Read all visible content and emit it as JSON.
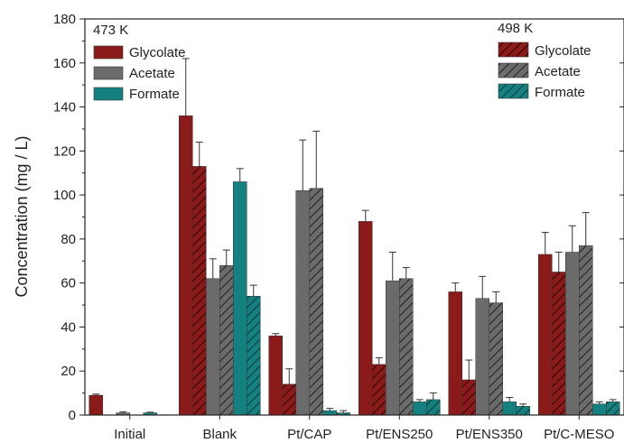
{
  "chart_data": {
    "type": "bar",
    "ylabel": "Concentration (mg / L)",
    "ylim": [
      0,
      180
    ],
    "yticks": [
      0,
      20,
      40,
      60,
      80,
      100,
      120,
      140,
      160,
      180
    ],
    "categories": [
      "Initial",
      "Blank",
      "Pt/CAP",
      "Pt/ENS250",
      "Pt/ENS350",
      "Pt/C-MESO"
    ],
    "legend_473": {
      "label": "473 K",
      "position": "top-left",
      "entries": [
        "Glycolate",
        "Acetate",
        "Formate"
      ]
    },
    "legend_498": {
      "label": "498 K",
      "position": "top-right",
      "entries": [
        "Glycolate",
        "Acetate",
        "Formate"
      ]
    },
    "colors": {
      "Glycolate": "#8b1a1a",
      "Acetate": "#6b6b6b",
      "Formate": "#158080"
    },
    "series": [
      {
        "name": "Glycolate",
        "temperature": "473 K",
        "hatched": false,
        "values": [
          9,
          136,
          36,
          88,
          56,
          73
        ],
        "errors": [
          0.5,
          26,
          1,
          5,
          4,
          10
        ]
      },
      {
        "name": "Glycolate",
        "temperature": "498 K",
        "hatched": true,
        "values": [
          null,
          113,
          14,
          23,
          16,
          65
        ],
        "errors": [
          null,
          11,
          7,
          3,
          9,
          9
        ]
      },
      {
        "name": "Acetate",
        "temperature": "473 K",
        "hatched": false,
        "values": [
          1,
          62,
          102,
          61,
          53,
          74
        ],
        "errors": [
          0.5,
          9,
          23,
          13,
          10,
          12
        ]
      },
      {
        "name": "Acetate",
        "temperature": "498 K",
        "hatched": true,
        "values": [
          null,
          68,
          103,
          62,
          51,
          77
        ],
        "errors": [
          null,
          7,
          26,
          5,
          5,
          15
        ]
      },
      {
        "name": "Formate",
        "temperature": "473 K",
        "hatched": false,
        "values": [
          1,
          106,
          2,
          6,
          6,
          5
        ],
        "errors": [
          0.3,
          6,
          1,
          1,
          2,
          1
        ]
      },
      {
        "name": "Formate",
        "temperature": "498 K",
        "hatched": true,
        "values": [
          null,
          54,
          1,
          7,
          4,
          6
        ],
        "errors": [
          null,
          5,
          1,
          3,
          1,
          1
        ]
      }
    ]
  }
}
